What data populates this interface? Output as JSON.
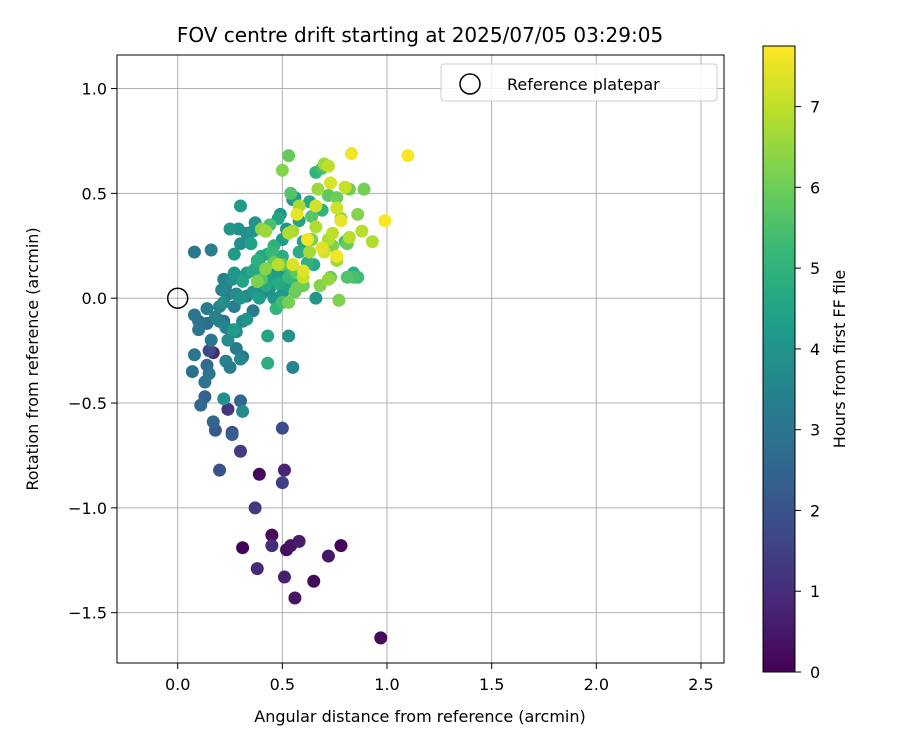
{
  "chart_data": {
    "type": "scatter",
    "title": "FOV centre drift starting at 2025/07/05 03:29:05",
    "xlabel": "Angular distance from reference (arcmin)",
    "ylabel": "Rotation from reference (arcmin)",
    "xlim": [
      -0.29,
      2.61
    ],
    "ylim": [
      -1.74,
      1.16
    ],
    "x_ticks": [
      0.0,
      0.5,
      1.0,
      1.5,
      2.0,
      2.5
    ],
    "x_tick_labels": [
      "0.0",
      "0.5",
      "1.0",
      "1.5",
      "2.0",
      "2.5"
    ],
    "y_ticks": [
      1.0,
      0.5,
      0.0,
      -0.5,
      -1.0,
      -1.5
    ],
    "y_tick_labels": [
      "1.0",
      "0.5",
      "0.0",
      "−0.5",
      "−1.0",
      "−1.5"
    ],
    "grid": true,
    "legend": {
      "position": "top-right",
      "entries": [
        "Reference platepar"
      ]
    },
    "reference_point": {
      "x": 0.0,
      "y": 0.0
    },
    "colorbar": {
      "label": "Hours from first FF file",
      "colormap": "viridis",
      "range": [
        0,
        7.75
      ],
      "ticks": [
        0,
        1,
        2,
        3,
        4,
        5,
        6,
        7
      ],
      "tick_labels": [
        "0",
        "1",
        "2",
        "3",
        "4",
        "5",
        "6",
        "7"
      ],
      "stops": [
        "#440154",
        "#482878",
        "#3e4989",
        "#31688e",
        "#26828e",
        "#1f9e89",
        "#35b779",
        "#6ece58",
        "#b5de2b",
        "#fde725"
      ]
    },
    "points": [
      [
        0.31,
        -1.19,
        0.05
      ],
      [
        0.45,
        -1.13,
        0.15
      ],
      [
        0.52,
        -1.2,
        0.3
      ],
      [
        0.54,
        -1.18,
        0.4
      ],
      [
        0.58,
        -1.16,
        0.6
      ],
      [
        0.65,
        -1.35,
        0.2
      ],
      [
        0.72,
        -1.23,
        0.5
      ],
      [
        0.78,
        -1.18,
        0.1
      ],
      [
        0.97,
        -1.62,
        0.2
      ],
      [
        0.56,
        -1.43,
        0.4
      ],
      [
        0.51,
        -1.33,
        0.7
      ],
      [
        0.38,
        -1.29,
        0.9
      ],
      [
        0.45,
        -1.18,
        1.0
      ],
      [
        0.39,
        -0.84,
        0.15
      ],
      [
        0.51,
        -0.82,
        0.8
      ],
      [
        0.5,
        -0.88,
        1.5
      ],
      [
        0.5,
        -0.62,
        1.8
      ],
      [
        0.37,
        -1.0,
        1.3
      ],
      [
        0.3,
        -0.73,
        1.4
      ],
      [
        0.26,
        -0.64,
        1.7
      ],
      [
        0.2,
        -0.82,
        2.0
      ],
      [
        0.18,
        -0.63,
        2.2
      ],
      [
        0.24,
        -0.53,
        1.2
      ],
      [
        0.17,
        -0.26,
        0.9
      ],
      [
        0.15,
        -0.25,
        1.8
      ],
      [
        0.3,
        -0.49,
        2.6
      ],
      [
        0.31,
        -0.54,
        3.7
      ],
      [
        0.22,
        -0.48,
        3.9
      ],
      [
        0.11,
        -0.51,
        2.6
      ],
      [
        0.13,
        -0.47,
        2.4
      ],
      [
        0.17,
        -0.59,
        2.5
      ],
      [
        0.26,
        -0.65,
        2.3
      ],
      [
        0.13,
        -0.4,
        2.9
      ],
      [
        0.07,
        -0.35,
        2.8
      ],
      [
        0.15,
        -0.36,
        3.0
      ],
      [
        0.14,
        -0.32,
        2.7
      ],
      [
        0.16,
        -0.2,
        3.1
      ],
      [
        0.08,
        -0.27,
        3.0
      ],
      [
        0.19,
        -0.1,
        2.6
      ],
      [
        0.23,
        -0.3,
        3.4
      ],
      [
        0.25,
        -0.33,
        3.3
      ],
      [
        0.28,
        -0.24,
        3.2
      ],
      [
        0.3,
        -0.29,
        3.6
      ],
      [
        0.31,
        -0.28,
        2.9
      ],
      [
        0.24,
        -0.2,
        3.8
      ],
      [
        0.28,
        -0.16,
        3.7
      ],
      [
        0.33,
        -0.1,
        4.0
      ],
      [
        0.27,
        -0.15,
        4.2
      ],
      [
        0.43,
        -0.18,
        4.5
      ],
      [
        0.43,
        -0.31,
        4.8
      ],
      [
        0.53,
        -0.18,
        3.9
      ],
      [
        0.55,
        -0.33,
        3.5
      ],
      [
        0.08,
        -0.08,
        3.1
      ],
      [
        0.1,
        -0.11,
        2.9
      ],
      [
        0.1,
        -0.15,
        3.0
      ],
      [
        0.14,
        -0.12,
        2.8
      ],
      [
        0.14,
        -0.05,
        3.2
      ],
      [
        0.18,
        -0.09,
        3.4
      ],
      [
        0.2,
        -0.11,
        3.2
      ],
      [
        0.22,
        -0.11,
        2.7
      ],
      [
        0.23,
        -0.14,
        3.5
      ],
      [
        0.27,
        -0.04,
        3.3
      ],
      [
        0.31,
        -0.11,
        3.6
      ],
      [
        0.36,
        -0.06,
        3.2
      ],
      [
        0.08,
        0.22,
        3.0
      ],
      [
        0.16,
        0.23,
        3.3
      ],
      [
        0.22,
        0.09,
        3.4
      ],
      [
        0.25,
        0.09,
        3.5
      ],
      [
        0.27,
        0.21,
        4.2
      ],
      [
        0.25,
        0.33,
        4.1
      ],
      [
        0.29,
        0.33,
        3.9
      ],
      [
        0.3,
        0.44,
        4.2
      ],
      [
        0.33,
        0.31,
        3.8
      ],
      [
        0.36,
        0.32,
        4.0
      ],
      [
        0.35,
        0.26,
        4.4
      ],
      [
        0.37,
        0.36,
        3.9
      ],
      [
        0.42,
        0.32,
        4.4
      ],
      [
        0.4,
        0.2,
        4.6
      ],
      [
        0.37,
        0.14,
        4.4
      ],
      [
        0.39,
        0.16,
        3.5
      ],
      [
        0.43,
        0.21,
        4.7
      ],
      [
        0.45,
        0.15,
        3.7
      ],
      [
        0.48,
        0.13,
        3.9
      ],
      [
        0.48,
        0.38,
        4.5
      ],
      [
        0.49,
        0.4,
        4.0
      ],
      [
        0.52,
        0.33,
        4.1
      ],
      [
        0.5,
        0.28,
        4.2
      ],
      [
        0.55,
        0.47,
        3.9
      ],
      [
        0.56,
        0.48,
        4.3
      ],
      [
        0.58,
        0.37,
        4.5
      ],
      [
        0.6,
        0.27,
        4.4
      ],
      [
        0.58,
        0.22,
        4.8
      ],
      [
        0.62,
        0.17,
        5.0
      ],
      [
        0.65,
        0.16,
        4.6
      ],
      [
        0.63,
        0.46,
        4.7
      ],
      [
        0.69,
        0.42,
        5.0
      ],
      [
        0.66,
        0.6,
        5.1
      ],
      [
        0.69,
        0.62,
        5.4
      ],
      [
        0.72,
        0.49,
        5.8
      ],
      [
        0.76,
        0.48,
        6.0
      ],
      [
        0.78,
        0.38,
        6.2
      ],
      [
        0.82,
        0.52,
        6.0
      ],
      [
        0.86,
        0.4,
        6.3
      ],
      [
        0.89,
        0.52,
        6.1
      ],
      [
        0.8,
        0.27,
        5.4
      ],
      [
        0.81,
        0.1,
        5.6
      ],
      [
        0.84,
        0.1,
        5.5
      ],
      [
        0.77,
        -0.01,
        6.2
      ],
      [
        0.66,
        0.0,
        4.1
      ],
      [
        0.57,
        0.12,
        5.8
      ],
      [
        0.6,
        0.06,
        6.0
      ],
      [
        0.53,
        0.68,
        5.9
      ],
      [
        0.5,
        0.61,
        6.3
      ],
      [
        0.54,
        0.5,
        5.6
      ],
      [
        0.58,
        0.44,
        6.7
      ],
      [
        0.7,
        0.64,
        6.6
      ],
      [
        0.72,
        0.63,
        7.0
      ],
      [
        0.73,
        0.55,
        7.3
      ],
      [
        0.76,
        0.43,
        7.2
      ],
      [
        0.78,
        0.37,
        7.5
      ],
      [
        0.8,
        0.53,
        7.1
      ],
      [
        0.83,
        0.69,
        7.6
      ],
      [
        0.88,
        0.32,
        6.9
      ],
      [
        0.93,
        0.27,
        6.8
      ],
      [
        0.99,
        0.37,
        7.7
      ],
      [
        1.1,
        0.68,
        7.7
      ],
      [
        0.72,
        0.28,
        6.8
      ],
      [
        0.74,
        0.25,
        6.2
      ],
      [
        0.69,
        0.24,
        7.4
      ],
      [
        0.76,
        0.18,
        6.6
      ],
      [
        0.76,
        0.2,
        7.6
      ],
      [
        0.72,
        0.09,
        6.5
      ],
      [
        0.73,
        0.1,
        6.0
      ],
      [
        0.68,
        0.06,
        6.3
      ],
      [
        0.63,
        0.22,
        6.7
      ],
      [
        0.64,
        0.28,
        6.1
      ],
      [
        0.66,
        0.34,
        6.8
      ],
      [
        0.66,
        0.44,
        7.2
      ],
      [
        0.67,
        0.52,
        6.6
      ],
      [
        0.64,
        0.39,
        5.7
      ],
      [
        0.55,
        0.32,
        6.7
      ],
      [
        0.53,
        0.31,
        6.8
      ],
      [
        0.57,
        0.4,
        7.5
      ],
      [
        0.55,
        0.16,
        7.3
      ],
      [
        0.55,
        0.14,
        5.5
      ],
      [
        0.53,
        0.1,
        5.2
      ],
      [
        0.57,
        0.05,
        6.0
      ],
      [
        0.5,
        0.16,
        5.8
      ],
      [
        0.48,
        0.16,
        6.9
      ],
      [
        0.46,
        0.17,
        5.9
      ],
      [
        0.42,
        0.14,
        6.3
      ],
      [
        0.4,
        0.33,
        6.4
      ],
      [
        0.42,
        0.32,
        6.6
      ],
      [
        0.38,
        0.08,
        6.2
      ],
      [
        0.4,
        0.09,
        5.6
      ],
      [
        0.44,
        0.35,
        5.5
      ],
      [
        0.45,
        0.22,
        5.2
      ],
      [
        0.47,
        -0.05,
        5.1
      ],
      [
        0.5,
        -0.02,
        5.4
      ],
      [
        0.53,
        -0.02,
        6.1
      ],
      [
        0.56,
        0.03,
        5.9
      ],
      [
        0.6,
        0.1,
        7.1
      ],
      [
        0.6,
        0.13,
        7.4
      ],
      [
        0.62,
        0.28,
        7.6
      ],
      [
        0.7,
        0.22,
        7.2
      ],
      [
        0.74,
        0.31,
        7.0
      ],
      [
        0.82,
        0.29,
        6.9
      ],
      [
        0.81,
        0.26,
        5.9
      ],
      [
        0.84,
        0.12,
        4.9
      ],
      [
        0.86,
        0.1,
        5.3
      ],
      [
        0.28,
        0.02,
        3.7
      ],
      [
        0.3,
        0.0,
        3.9
      ],
      [
        0.31,
        0.08,
        4.5
      ],
      [
        0.33,
        0.01,
        3.6
      ],
      [
        0.36,
        0.03,
        4.0
      ],
      [
        0.39,
        0.0,
        4.3
      ],
      [
        0.41,
        0.03,
        3.7
      ],
      [
        0.42,
        0.06,
        4.6
      ],
      [
        0.44,
        0.05,
        3.8
      ],
      [
        0.46,
        0.0,
        4.1
      ],
      [
        0.47,
        0.1,
        4.3
      ],
      [
        0.48,
        0.07,
        4.7
      ],
      [
        0.5,
        0.02,
        4.2
      ],
      [
        0.53,
        0.06,
        4.4
      ],
      [
        0.55,
        0.09,
        4.9
      ],
      [
        0.52,
        0.15,
        4.5
      ],
      [
        0.5,
        0.2,
        4.8
      ],
      [
        0.46,
        0.25,
        4.9
      ],
      [
        0.43,
        0.1,
        4.4
      ],
      [
        0.38,
        0.18,
        4.9
      ],
      [
        0.36,
        0.13,
        4.7
      ],
      [
        0.33,
        0.12,
        4.2
      ],
      [
        0.26,
        0.09,
        3.9
      ],
      [
        0.23,
        0.06,
        3.4
      ],
      [
        0.21,
        0.04,
        3.6
      ],
      [
        0.24,
        0.02,
        3.3
      ],
      [
        0.22,
        -0.02,
        3.8
      ],
      [
        0.2,
        -0.04,
        3.5
      ],
      [
        0.27,
        0.12,
        4.1
      ],
      [
        0.3,
        0.26,
        3.8
      ]
    ]
  }
}
